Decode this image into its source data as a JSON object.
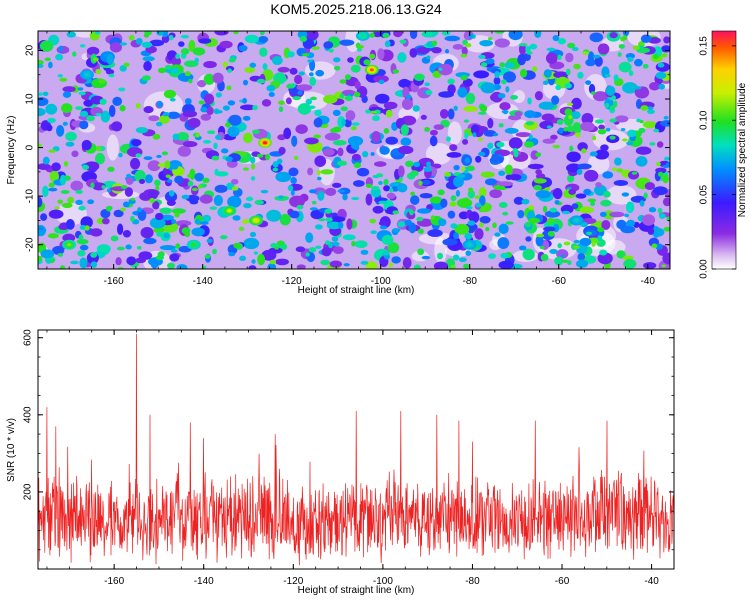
{
  "title": "KOM5.2025.218.06.13.G24",
  "colors": {
    "snr_line": "#ee2222",
    "frame": "#000000"
  },
  "chart_data": [
    {
      "type": "heatmap",
      "title": "KOM5.2025.218.06.13.G24",
      "xlabel": "Height of straight line (km)",
      "ylabel": "Frequency (Hz)",
      "xlim": [
        -177,
        -35
      ],
      "ylim": [
        -25,
        24
      ],
      "xticks": [
        -160,
        -140,
        -120,
        -100,
        -80,
        -60,
        -40
      ],
      "yticks": [
        -20,
        -10,
        0,
        10,
        20
      ],
      "colorbar": {
        "label": "Normalized spectral amplitude",
        "range": [
          0,
          0.16
        ],
        "ticks": [
          "0.00",
          "0.05",
          "0.10",
          "0.15"
        ],
        "colormap": "rainbow-white-to-red"
      },
      "hotspots": [
        {
          "x": -126,
          "y": 1,
          "v": 0.16
        },
        {
          "x": -102,
          "y": 16,
          "v": 0.15
        },
        {
          "x": -128,
          "y": -15,
          "v": 0.13
        },
        {
          "x": -134,
          "y": -13,
          "v": 0.12
        },
        {
          "x": -170,
          "y": -20,
          "v": 0.11
        },
        {
          "x": -142,
          "y": -20,
          "v": 0.1
        },
        {
          "x": -166,
          "y": 15,
          "v": 0.08
        },
        {
          "x": -104,
          "y": 23,
          "v": 0.09
        },
        {
          "x": -80,
          "y": -20,
          "v": 0.08
        },
        {
          "x": -56,
          "y": -15,
          "v": 0.08
        }
      ]
    },
    {
      "type": "line",
      "xlabel": "Height of straight line (km)",
      "ylabel": "SNR (10 * v/v)",
      "xlim": [
        -177,
        -35
      ],
      "ylim": [
        0,
        620
      ],
      "xticks": [
        -160,
        -140,
        -120,
        -100,
        -80,
        -60,
        -40
      ],
      "yticks": [
        200,
        400,
        600
      ],
      "series": [
        {
          "name": "SNR",
          "baseline": 130,
          "spread": 120,
          "peaks": [
            {
              "x": -155,
              "y": 610
            },
            {
              "x": -152,
              "y": 400
            },
            {
              "x": -175,
              "y": 420
            },
            {
              "x": -173,
              "y": 370
            },
            {
              "x": -106,
              "y": 410
            },
            {
              "x": -96,
              "y": 410
            },
            {
              "x": -88,
              "y": 400
            },
            {
              "x": -83,
              "y": 385
            },
            {
              "x": -66,
              "y": 385
            },
            {
              "x": -50,
              "y": 385
            },
            {
              "x": -143,
              "y": 380
            },
            {
              "x": -124,
              "y": 350
            }
          ]
        }
      ]
    }
  ]
}
